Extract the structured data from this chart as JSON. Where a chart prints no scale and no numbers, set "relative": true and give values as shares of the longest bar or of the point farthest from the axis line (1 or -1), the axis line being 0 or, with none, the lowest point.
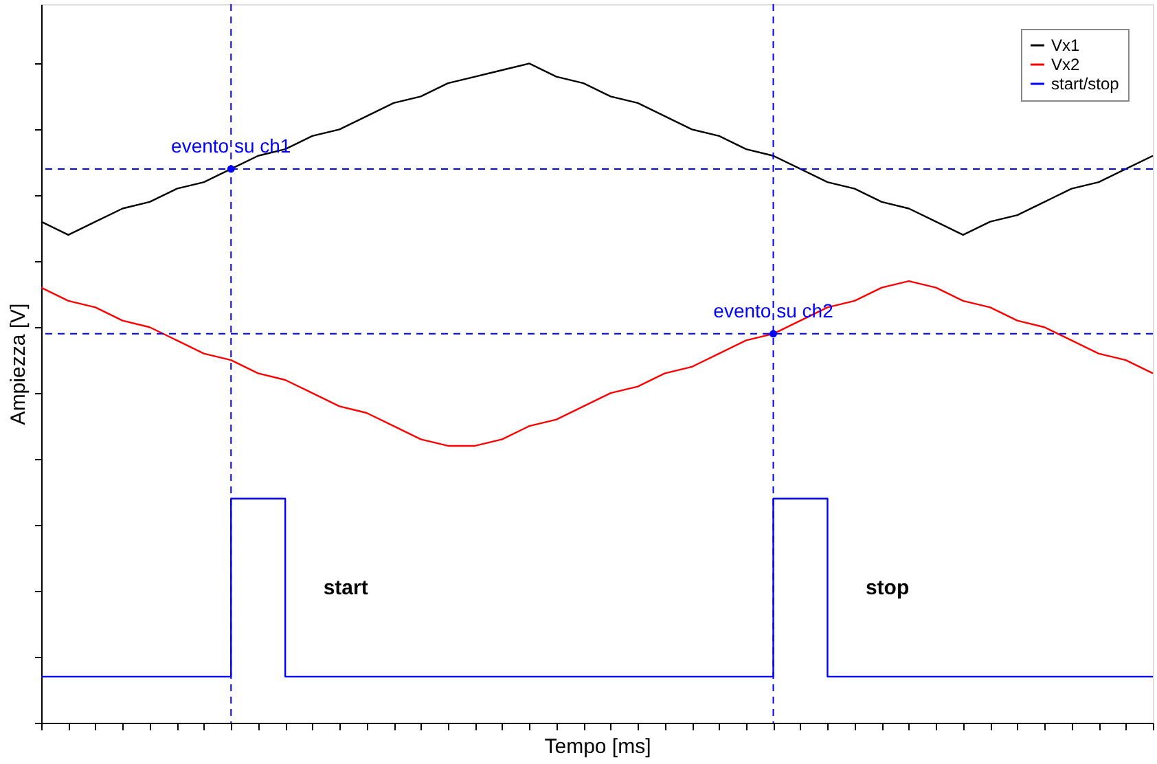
{
  "chart_data": {
    "type": "line",
    "relative": true,
    "xlabel": "Tempo [ms]",
    "ylabel": "Ampiezza [V]",
    "categories": [
      null,
      null,
      null,
      null,
      null,
      null,
      null,
      null,
      null,
      null,
      null,
      null,
      null,
      null,
      null,
      null,
      null,
      null,
      null,
      null,
      null,
      null,
      null,
      null,
      null,
      null,
      null,
      null,
      null,
      null,
      null,
      null,
      null,
      null,
      null,
      null,
      null,
      null,
      null,
      null,
      null,
      null
    ],
    "series": [
      {
        "name": "Vx1",
        "color": "#000000",
        "values": [
          0.76,
          0.74,
          0.76,
          0.78,
          0.79,
          0.81,
          0.82,
          0.84,
          0.86,
          0.87,
          0.89,
          0.9,
          0.92,
          0.94,
          0.95,
          0.97,
          0.98,
          0.99,
          1.0,
          0.98,
          0.97,
          0.95,
          0.94,
          0.92,
          0.9,
          0.89,
          0.87,
          0.86,
          0.84,
          0.82,
          0.81,
          0.79,
          0.78,
          0.76,
          0.74,
          0.76,
          0.77,
          0.79,
          0.81,
          0.82,
          0.84,
          0.86
        ]
      },
      {
        "name": "Vx2",
        "color": "#ff0000",
        "values": [
          0.66,
          0.64,
          0.63,
          0.61,
          0.6,
          0.58,
          0.56,
          0.55,
          0.53,
          0.52,
          0.5,
          0.48,
          0.47,
          0.45,
          0.43,
          0.42,
          0.42,
          0.43,
          0.45,
          0.46,
          0.48,
          0.5,
          0.51,
          0.53,
          0.54,
          0.56,
          0.58,
          0.59,
          0.61,
          0.63,
          0.64,
          0.66,
          0.67,
          0.66,
          0.64,
          0.63,
          0.61,
          0.6,
          0.58,
          0.56,
          0.55,
          0.53
        ]
      },
      {
        "name": "start/stop",
        "color": "#0000ff",
        "type": "step",
        "values": [
          0.07,
          0.07,
          0.07,
          0.07,
          0.07,
          0.07,
          0.07,
          0.34,
          0.34,
          0.07,
          0.07,
          0.07,
          0.07,
          0.07,
          0.07,
          0.07,
          0.07,
          0.07,
          0.07,
          0.07,
          0.07,
          0.07,
          0.07,
          0.07,
          0.07,
          0.07,
          0.07,
          0.34,
          0.34,
          0.07,
          0.07,
          0.07,
          0.07,
          0.07,
          0.07,
          0.07,
          0.07,
          0.07,
          0.07,
          0.07,
          0.07,
          0.07
        ]
      }
    ],
    "ref_lines": [
      {
        "axis": "y",
        "value": 0.84,
        "color": "#0000ff",
        "line_style": "dashed"
      },
      {
        "axis": "y",
        "value": 0.59,
        "color": "#0000ff",
        "line_style": "dashed"
      }
    ],
    "annotations": [
      "evento su ch1",
      "evento su ch2",
      "start",
      "stop"
    ],
    "legend": "top right",
    "grid": false,
    "tick_labels": false,
    "marker": "none",
    "line_style": "solid"
  }
}
